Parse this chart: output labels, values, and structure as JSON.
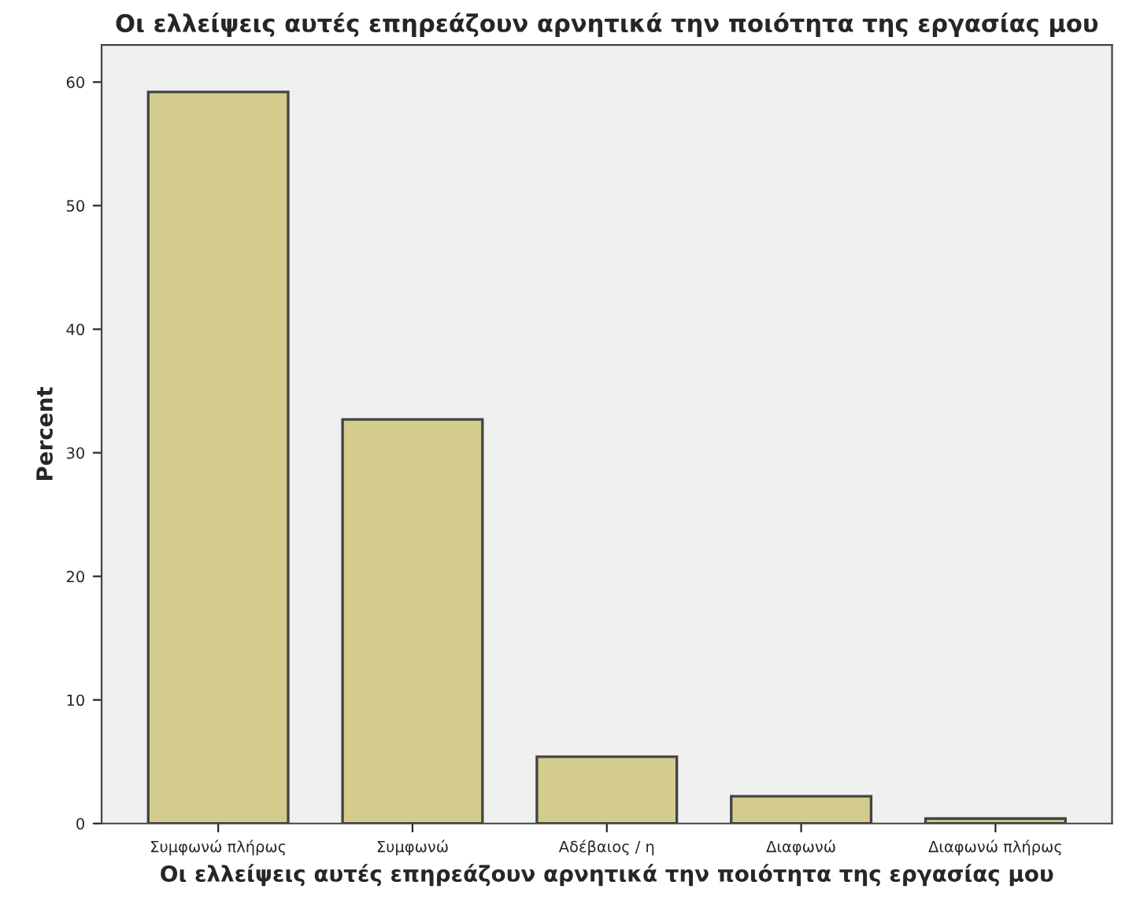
{
  "chart_data": {
    "type": "bar",
    "title": "Οι ελλείψεις αυτές επηρεάζουν αρνητικά την ποιότητα της εργασίας μου",
    "xlabel": "Οι ελλείψεις αυτές επηρεάζουν αρνητικά την ποιότητα της εργασίας μου",
    "ylabel": "Percent",
    "categories": [
      "Συμφωνώ πλήρως",
      "Συμφωνώ",
      "Αδέβαιος / η",
      "Διαφωνώ",
      "Διαφωνώ πλήρως"
    ],
    "values": [
      59.2,
      32.7,
      5.4,
      2.2,
      0.4
    ],
    "color": "#d4cc8c",
    "ylim": [
      0,
      63
    ],
    "yticks": [
      0,
      10,
      20,
      30,
      40,
      50,
      60
    ],
    "grid": false
  }
}
